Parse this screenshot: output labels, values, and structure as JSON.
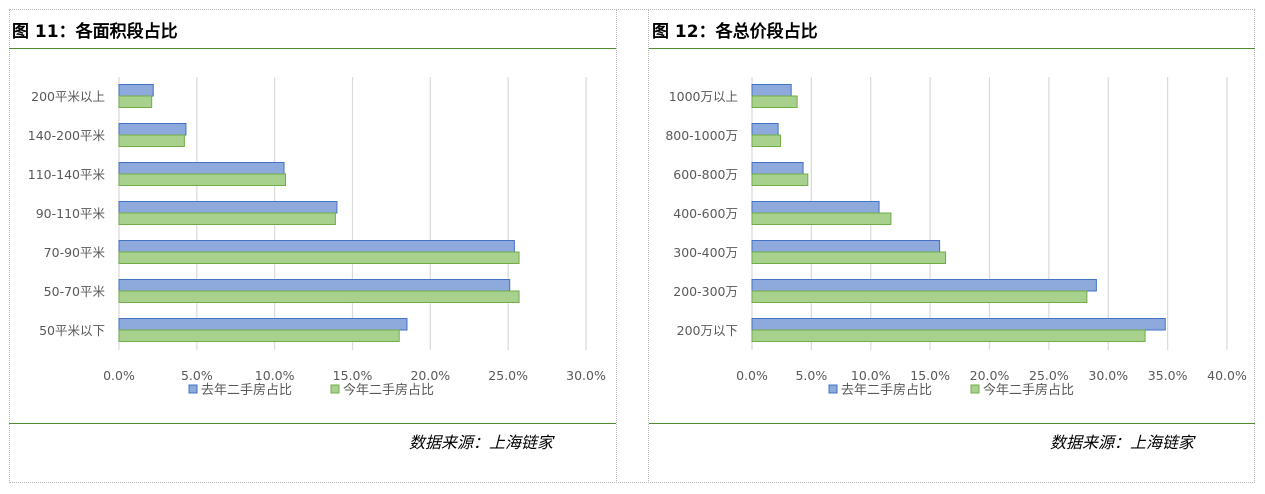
{
  "colors": {
    "series_last_year_fill": "#8ea9db",
    "series_last_year_stroke": "#4472c4",
    "series_this_year_fill": "#a9d18e",
    "series_this_year_stroke": "#70ad47",
    "rule": "#4e8c35",
    "grid": "#d9d9d9",
    "text": "#595959"
  },
  "legend": {
    "series_last_year": "去年二手房占比",
    "series_this_year": "今年二手房占比"
  },
  "figures": [
    {
      "title": "图 11：各面积段占比",
      "source": "数据来源：上海链家",
      "chart_data": {
        "type": "bar",
        "orientation": "horizontal",
        "categories": [
          "200平米以上",
          "140-200平米",
          "110-140平米",
          "90-110平米",
          "70-90平米",
          "50-70平米",
          "50平米以下"
        ],
        "series": [
          {
            "name": "去年二手房占比",
            "values": [
              2.2,
              4.3,
              10.6,
              14.0,
              25.4,
              25.1,
              18.5
            ]
          },
          {
            "name": "今年二手房占比",
            "values": [
              2.1,
              4.2,
              10.7,
              13.9,
              25.7,
              25.7,
              18.0
            ]
          }
        ],
        "xlim": [
          0,
          30
        ],
        "xticks": [
          "0.0%",
          "5.0%",
          "10.0%",
          "15.0%",
          "20.0%",
          "25.0%",
          "30.0%"
        ],
        "grid": true,
        "legend_position": "bottom"
      }
    },
    {
      "title": "图 12：各总价段占比",
      "source": "数据来源：上海链家",
      "chart_data": {
        "type": "bar",
        "orientation": "horizontal",
        "categories": [
          "1000万以上",
          "800-1000万",
          "600-800万",
          "400-600万",
          "300-400万",
          "200-300万",
          "200万以下"
        ],
        "series": [
          {
            "name": "去年二手房占比",
            "values": [
              3.3,
              2.2,
              4.3,
              10.7,
              15.8,
              29.0,
              34.8
            ]
          },
          {
            "name": "今年二手房占比",
            "values": [
              3.8,
              2.4,
              4.7,
              11.7,
              16.3,
              28.2,
              33.1
            ]
          }
        ],
        "xlim": [
          0,
          40
        ],
        "xticks": [
          "0.0%",
          "5.0%",
          "10.0%",
          "15.0%",
          "20.0%",
          "25.0%",
          "30.0%",
          "35.0%",
          "40.0%"
        ],
        "grid": true,
        "legend_position": "bottom"
      }
    }
  ]
}
